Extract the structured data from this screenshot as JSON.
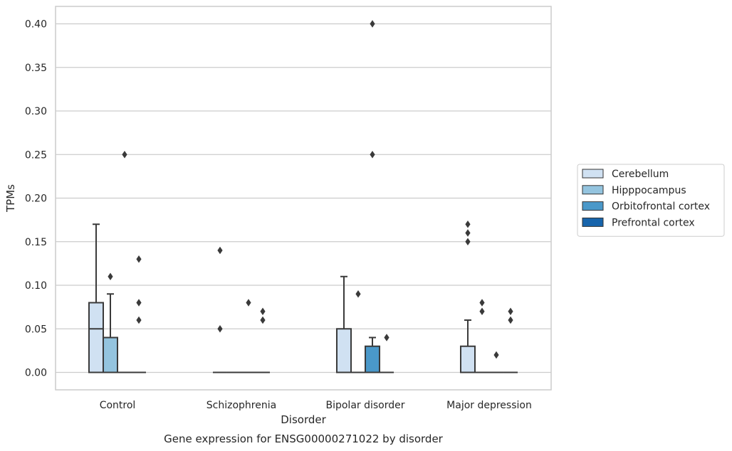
{
  "chart_data": {
    "type": "box",
    "xlabel": "Disorder",
    "ylabel": "TPMs",
    "caption": "Gene expression for ENSG00000271022 by disorder",
    "ylim": [
      -0.02,
      0.42
    ],
    "yticks": [
      0.0,
      0.05,
      0.1,
      0.15,
      0.2,
      0.25,
      0.3,
      0.35,
      0.4
    ],
    "ytick_labels": [
      "0.00",
      "0.05",
      "0.10",
      "0.15",
      "0.20",
      "0.25",
      "0.30",
      "0.35",
      "0.40"
    ],
    "grid": "horizontal",
    "legend_placement": "right",
    "categories": [
      "Control",
      "Schizophrenia",
      "Bipolar disorder",
      "Major depression"
    ],
    "series": [
      {
        "name": "Cerebellum",
        "color": "#d0e1f2",
        "boxes": [
          {
            "q1": 0.0,
            "median": 0.05,
            "q3": 0.08,
            "whisker_low": 0.0,
            "whisker_high": 0.17,
            "outliers": []
          },
          {
            "q1": 0.0,
            "median": 0.0,
            "q3": 0.0,
            "whisker_low": 0.0,
            "whisker_high": 0.0,
            "outliers": [
              0.14,
              0.05
            ]
          },
          {
            "q1": 0.0,
            "median": 0.0,
            "q3": 0.05,
            "whisker_low": 0.0,
            "whisker_high": 0.11,
            "outliers": []
          },
          {
            "q1": 0.0,
            "median": 0.0,
            "q3": 0.03,
            "whisker_low": 0.0,
            "whisker_high": 0.06,
            "outliers": [
              0.17,
              0.16,
              0.15
            ]
          }
        ]
      },
      {
        "name": "Hipppocampus",
        "color": "#94c4df",
        "boxes": [
          {
            "q1": 0.0,
            "median": 0.0,
            "q3": 0.04,
            "whisker_low": 0.0,
            "whisker_high": 0.09,
            "outliers": [
              0.11
            ]
          },
          {
            "q1": 0.0,
            "median": 0.0,
            "q3": 0.0,
            "whisker_low": 0.0,
            "whisker_high": 0.0,
            "outliers": []
          },
          {
            "q1": 0.0,
            "median": 0.0,
            "q3": 0.0,
            "whisker_low": 0.0,
            "whisker_high": 0.0,
            "outliers": [
              0.09
            ]
          },
          {
            "q1": 0.0,
            "median": 0.0,
            "q3": 0.0,
            "whisker_low": 0.0,
            "whisker_high": 0.0,
            "outliers": [
              0.08,
              0.07
            ]
          }
        ]
      },
      {
        "name": "Orbitofrontal cortex",
        "color": "#4a98c9",
        "boxes": [
          {
            "q1": 0.0,
            "median": 0.0,
            "q3": 0.0,
            "whisker_low": 0.0,
            "whisker_high": 0.0,
            "outliers": [
              0.25
            ]
          },
          {
            "q1": 0.0,
            "median": 0.0,
            "q3": 0.0,
            "whisker_low": 0.0,
            "whisker_high": 0.0,
            "outliers": [
              0.08
            ]
          },
          {
            "q1": 0.0,
            "median": 0.0,
            "q3": 0.03,
            "whisker_low": 0.0,
            "whisker_high": 0.04,
            "outliers": [
              0.4,
              0.25
            ]
          },
          {
            "q1": 0.0,
            "median": 0.0,
            "q3": 0.0,
            "whisker_low": 0.0,
            "whisker_high": 0.0,
            "outliers": [
              0.02
            ]
          }
        ]
      },
      {
        "name": "Prefrontal cortex",
        "color": "#1764ab",
        "boxes": [
          {
            "q1": 0.0,
            "median": 0.0,
            "q3": 0.0,
            "whisker_low": 0.0,
            "whisker_high": 0.0,
            "outliers": [
              0.13,
              0.08,
              0.06
            ]
          },
          {
            "q1": 0.0,
            "median": 0.0,
            "q3": 0.0,
            "whisker_low": 0.0,
            "whisker_high": 0.0,
            "outliers": [
              0.07,
              0.06
            ]
          },
          {
            "q1": 0.0,
            "median": 0.0,
            "q3": 0.0,
            "whisker_low": 0.0,
            "whisker_high": 0.0,
            "outliers": [
              0.04
            ]
          },
          {
            "q1": 0.0,
            "median": 0.0,
            "q3": 0.0,
            "whisker_low": 0.0,
            "whisker_high": 0.0,
            "outliers": [
              0.07,
              0.06
            ]
          }
        ]
      }
    ],
    "colors": {
      "grid": "#cccccc",
      "frame": "#cccccc",
      "box_edge": "#3a3a3a"
    }
  }
}
